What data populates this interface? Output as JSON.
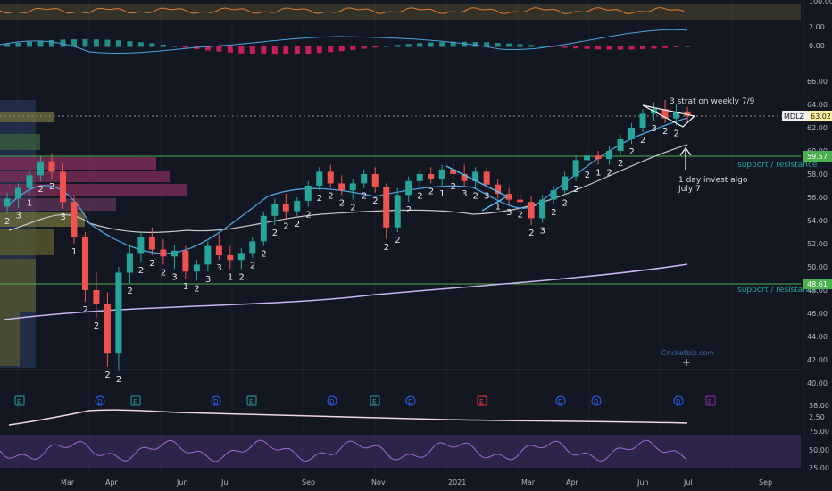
{
  "chart_data": {
    "type": "candlestick",
    "symbol": "MDLZ",
    "last_price": "63.02",
    "x_ticks": [
      "Mar",
      "Apr",
      "Jun",
      "Jul",
      "Sep",
      "Nov",
      "2021",
      "Mar",
      "Apr",
      "Jun",
      "Jul",
      "Sep"
    ],
    "price_axis": {
      "ticks": [
        "66.00",
        "64.00",
        "62.00",
        "60.00",
        "58.00",
        "56.00",
        "54.00",
        "52.00",
        "50.00",
        "48.00",
        "46.00",
        "44.00",
        "42.00",
        "40.00"
      ],
      "range": [
        41,
        68
      ]
    },
    "support_levels": [
      {
        "value": 59.57,
        "label": "support / resistance",
        "tag": "59.57"
      },
      {
        "value": 48.61,
        "label": "support / resistance",
        "tag": "48.61"
      }
    ],
    "annotations": [
      {
        "text": "3 strat on weekly 7/9"
      },
      {
        "text": "1 day invest algo"
      },
      {
        "text": "July 7"
      }
    ],
    "watermark": "Cricketbiz.com",
    "candles": [
      {
        "o": 55.2,
        "h": 56.4,
        "l": 54.6,
        "c": 55.9
      },
      {
        "o": 55.9,
        "h": 57.2,
        "l": 55.1,
        "c": 56.8
      },
      {
        "o": 56.8,
        "h": 58.4,
        "l": 56.2,
        "c": 57.9
      },
      {
        "o": 57.9,
        "h": 59.5,
        "l": 57.4,
        "c": 59.1
      },
      {
        "o": 59.1,
        "h": 59.8,
        "l": 57.6,
        "c": 58.2
      },
      {
        "o": 58.2,
        "h": 58.9,
        "l": 55.0,
        "c": 55.6
      },
      {
        "o": 55.6,
        "h": 56.2,
        "l": 52.0,
        "c": 52.6
      },
      {
        "o": 52.6,
        "h": 53.0,
        "l": 47.0,
        "c": 48.0
      },
      {
        "o": 48.0,
        "h": 49.5,
        "l": 45.6,
        "c": 46.8
      },
      {
        "o": 46.8,
        "h": 47.8,
        "l": 41.4,
        "c": 42.6
      },
      {
        "o": 42.6,
        "h": 50.0,
        "l": 41.0,
        "c": 49.5
      },
      {
        "o": 49.5,
        "h": 51.8,
        "l": 48.6,
        "c": 51.2
      },
      {
        "o": 51.2,
        "h": 53.0,
        "l": 50.4,
        "c": 52.6
      },
      {
        "o": 52.6,
        "h": 53.4,
        "l": 51.0,
        "c": 51.5
      },
      {
        "o": 51.5,
        "h": 52.4,
        "l": 50.2,
        "c": 50.9
      },
      {
        "o": 50.9,
        "h": 51.9,
        "l": 49.8,
        "c": 51.4
      },
      {
        "o": 51.4,
        "h": 51.8,
        "l": 49.0,
        "c": 49.6
      },
      {
        "o": 49.6,
        "h": 50.6,
        "l": 48.8,
        "c": 50.2
      },
      {
        "o": 50.2,
        "h": 52.2,
        "l": 49.6,
        "c": 51.8
      },
      {
        "o": 51.8,
        "h": 52.8,
        "l": 50.6,
        "c": 51.0
      },
      {
        "o": 51.0,
        "h": 51.8,
        "l": 49.8,
        "c": 50.6
      },
      {
        "o": 50.6,
        "h": 51.6,
        "l": 49.8,
        "c": 51.2
      },
      {
        "o": 51.2,
        "h": 52.6,
        "l": 50.8,
        "c": 52.2
      },
      {
        "o": 52.2,
        "h": 54.8,
        "l": 51.8,
        "c": 54.4
      },
      {
        "o": 54.4,
        "h": 55.9,
        "l": 53.6,
        "c": 55.4
      },
      {
        "o": 55.4,
        "h": 56.3,
        "l": 54.2,
        "c": 54.8
      },
      {
        "o": 54.8,
        "h": 56.0,
        "l": 54.4,
        "c": 55.7
      },
      {
        "o": 55.7,
        "h": 57.4,
        "l": 55.2,
        "c": 57.0
      },
      {
        "o": 57.0,
        "h": 58.6,
        "l": 56.6,
        "c": 58.2
      },
      {
        "o": 58.2,
        "h": 58.8,
        "l": 56.8,
        "c": 57.2
      },
      {
        "o": 57.2,
        "h": 57.9,
        "l": 56.2,
        "c": 56.6
      },
      {
        "o": 56.6,
        "h": 57.6,
        "l": 55.8,
        "c": 57.2
      },
      {
        "o": 57.2,
        "h": 58.4,
        "l": 56.8,
        "c": 58.0
      },
      {
        "o": 58.0,
        "h": 58.6,
        "l": 56.4,
        "c": 56.9
      },
      {
        "o": 56.9,
        "h": 57.2,
        "l": 52.4,
        "c": 53.4
      },
      {
        "o": 53.4,
        "h": 56.8,
        "l": 53.0,
        "c": 56.2
      },
      {
        "o": 56.2,
        "h": 57.8,
        "l": 55.6,
        "c": 57.4
      },
      {
        "o": 57.4,
        "h": 58.4,
        "l": 56.8,
        "c": 58.0
      },
      {
        "o": 58.0,
        "h": 58.6,
        "l": 57.2,
        "c": 57.6
      },
      {
        "o": 57.6,
        "h": 58.8,
        "l": 57.0,
        "c": 58.4
      },
      {
        "o": 58.4,
        "h": 59.2,
        "l": 57.6,
        "c": 58.0
      },
      {
        "o": 58.0,
        "h": 58.8,
        "l": 57.0,
        "c": 57.4
      },
      {
        "o": 57.4,
        "h": 58.6,
        "l": 56.8,
        "c": 58.2
      },
      {
        "o": 58.2,
        "h": 58.6,
        "l": 56.8,
        "c": 57.1
      },
      {
        "o": 57.1,
        "h": 57.6,
        "l": 55.9,
        "c": 56.3
      },
      {
        "o": 56.3,
        "h": 56.8,
        "l": 55.4,
        "c": 55.8
      },
      {
        "o": 55.8,
        "h": 56.4,
        "l": 55.2,
        "c": 55.6
      },
      {
        "o": 55.6,
        "h": 56.1,
        "l": 53.6,
        "c": 54.2
      },
      {
        "o": 54.2,
        "h": 56.2,
        "l": 53.8,
        "c": 55.8
      },
      {
        "o": 55.8,
        "h": 57.0,
        "l": 55.4,
        "c": 56.6
      },
      {
        "o": 56.6,
        "h": 58.2,
        "l": 56.2,
        "c": 57.8
      },
      {
        "o": 57.8,
        "h": 59.6,
        "l": 57.4,
        "c": 59.2
      },
      {
        "o": 59.2,
        "h": 60.2,
        "l": 58.6,
        "c": 59.6
      },
      {
        "o": 59.6,
        "h": 60.0,
        "l": 58.8,
        "c": 59.3
      },
      {
        "o": 59.3,
        "h": 60.4,
        "l": 58.8,
        "c": 60.0
      },
      {
        "o": 60.0,
        "h": 61.4,
        "l": 59.6,
        "c": 61.0
      },
      {
        "o": 61.0,
        "h": 62.4,
        "l": 60.6,
        "c": 62.0
      },
      {
        "o": 62.0,
        "h": 63.6,
        "l": 61.6,
        "c": 63.2
      },
      {
        "o": 63.2,
        "h": 64.2,
        "l": 62.6,
        "c": 63.6
      },
      {
        "o": 63.6,
        "h": 64.4,
        "l": 62.4,
        "c": 62.8
      },
      {
        "o": 62.8,
        "h": 64.0,
        "l": 62.2,
        "c": 63.4
      },
      {
        "o": 63.4,
        "h": 63.8,
        "l": 62.6,
        "c": 63.02
      }
    ]
  },
  "indicators": {
    "top_axis": [
      "100.00",
      "2.00",
      "0.00"
    ],
    "bottom_axis": [
      "38.00",
      "2.50",
      "75.00",
      "50.00",
      "25.00"
    ],
    "event_markers": [
      {
        "kind": "E",
        "color": "#26a69a"
      },
      {
        "kind": "D",
        "color": "#2962ff"
      },
      {
        "kind": "E",
        "color": "#26a69a"
      },
      {
        "kind": "D",
        "color": "#2962ff"
      },
      {
        "kind": "E",
        "color": "#26a69a"
      },
      {
        "kind": "D",
        "color": "#2962ff"
      },
      {
        "kind": "E",
        "color": "#26a69a"
      },
      {
        "kind": "D",
        "color": "#2962ff"
      },
      {
        "kind": "E",
        "color": "#f23645"
      },
      {
        "kind": "D",
        "color": "#2962ff"
      },
      {
        "kind": "D",
        "color": "#2962ff"
      },
      {
        "kind": "D",
        "color": "#2962ff"
      },
      {
        "kind": "E",
        "color": "#9c27b0"
      }
    ]
  },
  "colors": {
    "up": "#26a69a",
    "down": "#ef5350",
    "bg": "#131722",
    "grid": "#1e2230",
    "support": "#4caf50",
    "ema": "#4aa3df",
    "sma": "#c8c8c8",
    "sma200": "#c9b6f2"
  }
}
